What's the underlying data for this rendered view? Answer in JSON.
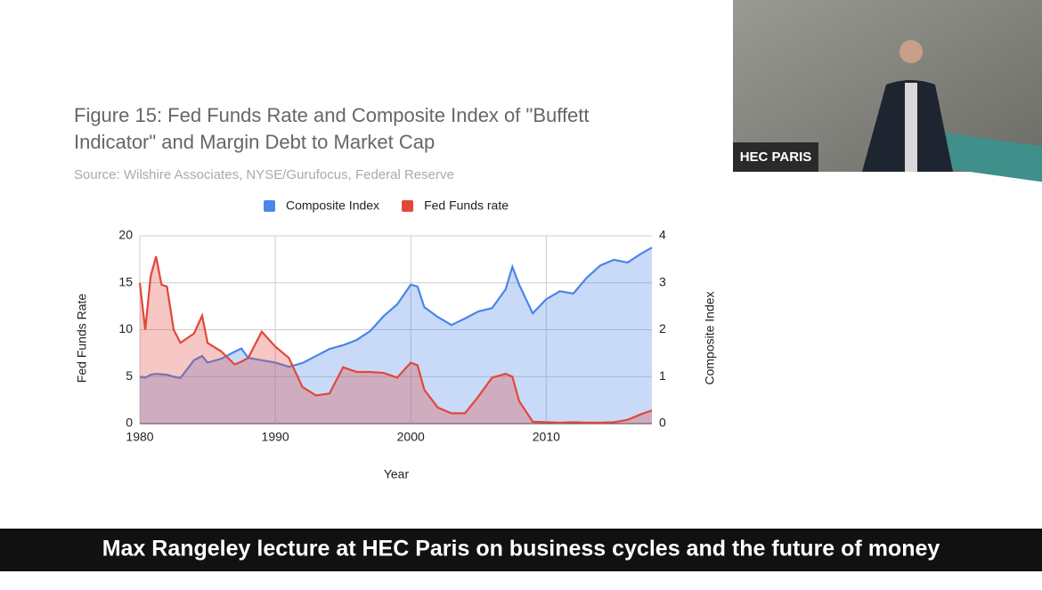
{
  "chart_data": {
    "type": "area",
    "title": "Figure 15: Fed Funds Rate and Composite Index of \"Buffett Indicator\" and Margin Debt to Market Cap",
    "subtitle": "Source: Wilshire Associates, NYSE/Gurufocus, Federal Reserve",
    "x_label": "Year",
    "y_label": "Fed Funds Rate",
    "y2_label": "Composite Index",
    "x": [
      1980,
      1980.4,
      1980.8,
      1981.2,
      1981.6,
      1982,
      1982.5,
      1983,
      1984,
      1984.6,
      1985,
      1986,
      1987,
      1987.5,
      1988,
      1989,
      1990,
      1991,
      1992,
      1993,
      1994,
      1995,
      1996,
      1997,
      1998,
      1999,
      2000,
      2000.5,
      2001,
      2002,
      2003,
      2004,
      2005,
      2006,
      2007,
      2007.5,
      2008,
      2009,
      2010,
      2011,
      2012,
      2013,
      2014,
      2015,
      2016,
      2017,
      2017.8
    ],
    "series": [
      {
        "name": "Composite Index",
        "color": "#4a86e8",
        "axis": "y2",
        "values": [
          1.0,
          0.98,
          1.04,
          1.06,
          1.05,
          1.04,
          1.0,
          0.97,
          1.35,
          1.44,
          1.3,
          1.38,
          1.53,
          1.6,
          1.4,
          1.35,
          1.3,
          1.21,
          1.29,
          1.44,
          1.59,
          1.67,
          1.78,
          1.97,
          2.29,
          2.54,
          2.96,
          2.92,
          2.48,
          2.27,
          2.1,
          2.24,
          2.39,
          2.46,
          2.86,
          3.34,
          2.96,
          2.35,
          2.65,
          2.82,
          2.77,
          3.11,
          3.37,
          3.49,
          3.43,
          3.62,
          3.75
        ]
      },
      {
        "name": "Fed Funds rate",
        "color": "#e2473a",
        "values": [
          15,
          10,
          15.7,
          17.8,
          14.8,
          14.6,
          10,
          8.6,
          9.6,
          11.5,
          8.6,
          7.7,
          6.3,
          6.6,
          7,
          9.8,
          8.2,
          7,
          3.9,
          3,
          3.2,
          6,
          5.5,
          5.5,
          5.4,
          4.9,
          6.5,
          6.2,
          3.6,
          1.7,
          1.1,
          1.1,
          2.9,
          4.9,
          5.3,
          5.0,
          2.4,
          0.2,
          0.15,
          0.1,
          0.15,
          0.1,
          0.1,
          0.15,
          0.4,
          1.0,
          1.4
        ]
      }
    ],
    "xlim": [
      1980,
      2017.8
    ],
    "xticks": [
      1980,
      1990,
      2000,
      2010
    ],
    "ylim": [
      0,
      20
    ],
    "yticks": [
      0,
      5,
      10,
      15,
      20
    ],
    "y2lim": [
      0,
      4
    ],
    "y2ticks": [
      0,
      1,
      2,
      3,
      4
    ],
    "grid": true,
    "legend": "top"
  },
  "video": {
    "webcam_label": "HEC PARIS",
    "caption": "Max Rangeley lecture at HEC Paris on business cycles and the future of money"
  }
}
